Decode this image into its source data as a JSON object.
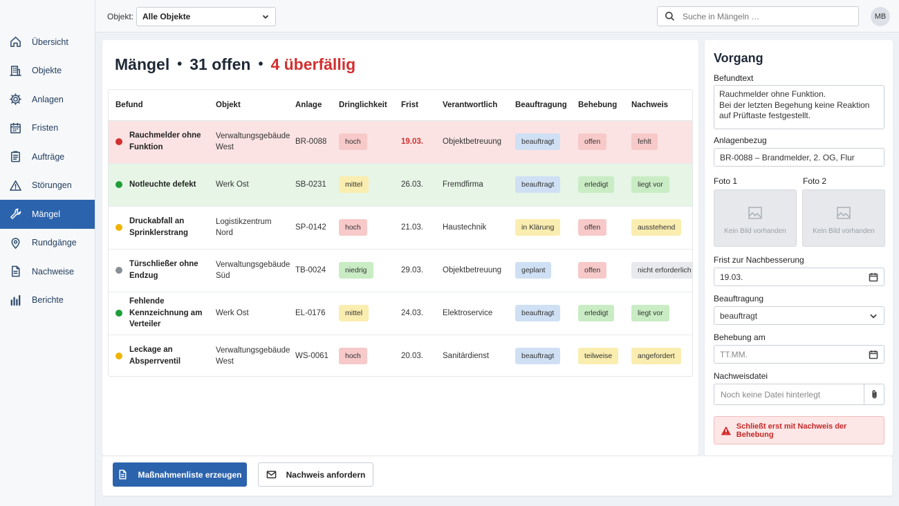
{
  "sidebar": {
    "items": [
      {
        "label": "Übersicht",
        "icon": "home-icon"
      },
      {
        "label": "Objekte",
        "icon": "building-icon"
      },
      {
        "label": "Anlagen",
        "icon": "gear-icon"
      },
      {
        "label": "Fristen",
        "icon": "calendar-icon"
      },
      {
        "label": "Aufträge",
        "icon": "clipboard-icon"
      },
      {
        "label": "Störungen",
        "icon": "warning-icon"
      },
      {
        "label": "Mängel",
        "icon": "wrench-icon",
        "active": true
      },
      {
        "label": "Rundgänge",
        "icon": "location-pin-icon"
      },
      {
        "label": "Nachweise",
        "icon": "document-icon"
      },
      {
        "label": "Berichte",
        "icon": "bar-chart-icon"
      }
    ]
  },
  "topbar": {
    "objekt_label": "Objekt:",
    "objekt_value": "Alle Objekte",
    "search_placeholder": "Suche in Mängeln …",
    "avatar_initials": "MB"
  },
  "main": {
    "title": "Mängel",
    "open_count": "31 offen",
    "overdue_count": "4 überfällig",
    "columns": [
      "Befund",
      "Objekt",
      "Anlage",
      "Dringlichkeit",
      "Frist",
      "Verantwortlich",
      "Beauftragung",
      "Behebung",
      "Nachweis"
    ],
    "rows": [
      {
        "befund": "Rauchmelder ohne Funktion",
        "status_color": "#d32f2f",
        "objekt": "Verwaltungsgebäude West",
        "anlage": "BR-0088",
        "dringlichkeit": "hoch",
        "frist": "19.03.",
        "verantwortlich": "Objektbetreuung",
        "beauftragung": "beauftragt",
        "behebung": "offen",
        "nachweis": "fehlt"
      },
      {
        "befund": "Notleuchte defekt",
        "status_color": "#1e9e3a",
        "objekt": "Werk Ost",
        "anlage": "SB-0231",
        "dringlichkeit": "mittel",
        "frist": "26.03.",
        "verantwortlich": "Fremdfirma",
        "beauftragung": "beauftragt",
        "behebung": "erledigt",
        "nachweis": "liegt vor"
      },
      {
        "befund": "Druckabfall an Sprinklerstrang",
        "status_color": "#f0b400",
        "objekt": "Logistikzentrum Nord",
        "anlage": "SP-0142",
        "dringlichkeit": "hoch",
        "frist": "21.03.",
        "verantwortlich": "Haustechnik",
        "beauftragung": "in Klärung",
        "behebung": "offen",
        "nachweis": "ausstehend"
      },
      {
        "befund": "Türschließer ohne Endzug",
        "status_color": "#8a8f96",
        "objekt": "Verwaltungsgebäude Süd",
        "anlage": "TB-0024",
        "dringlichkeit": "niedrig",
        "frist": "29.03.",
        "verantwortlich": "Objektbetreuung",
        "beauftragung": "geplant",
        "behebung": "offen",
        "nachweis": "nicht erforderlich"
      },
      {
        "befund": "Fehlende Kennzeichnung am Verteiler",
        "status_color": "#1e9e3a",
        "objekt": "Werk Ost",
        "anlage": "EL-0176",
        "dringlichkeit": "mittel",
        "frist": "24.03.",
        "verantwortlich": "Elektroservice",
        "beauftragung": "beauftragt",
        "behebung": "erledigt",
        "nachweis": "liegt vor"
      },
      {
        "befund": "Leckage an Absperrventil",
        "status_color": "#f0b400",
        "objekt": "Verwaltungsgebäude West",
        "anlage": "WS-0061",
        "dringlichkeit": "hoch",
        "frist": "20.03.",
        "verantwortlich": "Sanitärdienst",
        "beauftragung": "beauftragt",
        "behebung": "teilweise",
        "nachweis": "angefordert"
      }
    ]
  },
  "actions": {
    "primary_label": "Maßnahmenliste erzeugen",
    "secondary_label": "Nachweis anfordern"
  },
  "vorgang": {
    "title": "Vorgang",
    "befundtext_label": "Befundtext",
    "befundtext_lines": [
      "Rauchmelder ohne Funktion.",
      "Bei der letzten Begehung keine Reaktion",
      "auf Prüftaste festgestellt."
    ],
    "anlagenbezug_label": "Anlagenbezug",
    "anlagenbezug_value": "BR-0088 – Brandmelder, 2. OG, Flur",
    "foto1_label": "Foto 1",
    "foto2_label": "Foto 2",
    "no_image_text": "Kein Bild vorhanden",
    "frist_label": "Frist zur Nachbesserung",
    "frist_value": "19.03.",
    "beauftragung_label": "Beauftragung",
    "beauftragung_value": "beauftragt",
    "behebung_label": "Behebung am",
    "behebung_placeholder": "TT.MM.",
    "nachweisdatei_label": "Nachweisdatei",
    "nachweisdatei_placeholder": "Noch keine Datei hinterlegt",
    "alert_text": "Schließt erst mit Nachweis der Behebung"
  },
  "colors": {
    "accent": "#2c63ad",
    "danger": "#d32f2f",
    "row_overdue": "#fbe3e3",
    "row_done": "#e6f5e6"
  }
}
